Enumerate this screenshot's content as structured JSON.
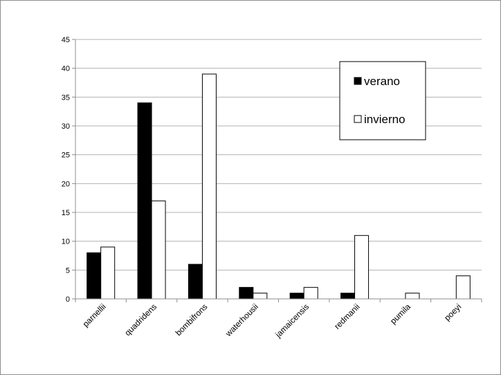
{
  "chart_data": {
    "type": "bar",
    "categories": [
      "parnellii",
      "quadridens",
      "bombifrons",
      "waterhousii",
      "jamaicensis",
      "redmanii",
      "pumila",
      "poeyi"
    ],
    "series": [
      {
        "name": "verano",
        "values": [
          8,
          34,
          6,
          2,
          1,
          1,
          0,
          0
        ],
        "color": "#000000"
      },
      {
        "name": "invierno",
        "values": [
          9,
          17,
          39,
          1,
          2,
          11,
          1,
          4
        ],
        "color": "#ffffff"
      }
    ],
    "y_ticks": [
      "0",
      "5",
      "10",
      "15",
      "20",
      "25",
      "30",
      "35",
      "40",
      "45"
    ],
    "ylim": [
      0,
      45
    ],
    "grid": true,
    "legend_position": "top-right",
    "axis_color": "#8c8c8c",
    "grid_color": "#b3b3b3",
    "bar_stroke": "#000000"
  }
}
